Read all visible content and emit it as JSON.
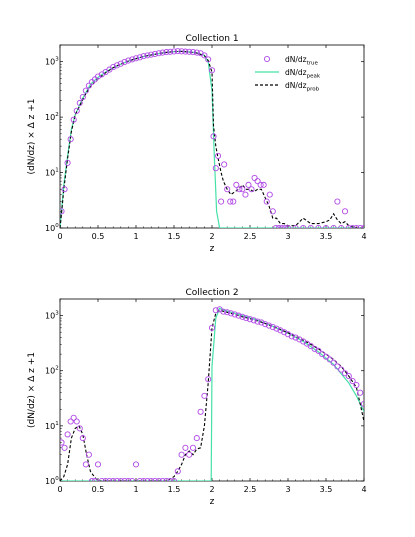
{
  "chart_data": [
    {
      "type": "scatter",
      "title": "Collection 1",
      "xlabel": "z",
      "ylabel": "(dN/dz) × Δ z +1",
      "xlim": [
        0,
        4
      ],
      "ylim": [
        1,
        2000
      ],
      "yscale": "log",
      "x_ticks": [
        "0",
        "0.5",
        "1",
        "1.5",
        "2",
        "2.5",
        "3",
        "3.5",
        "4"
      ],
      "y_ticks": [
        {
          "base": "10",
          "exp": "0"
        },
        {
          "base": "10",
          "exp": "1"
        },
        {
          "base": "10",
          "exp": "2"
        },
        {
          "base": "10",
          "exp": "3"
        }
      ],
      "legend": {
        "placement": "top-right",
        "entries": [
          {
            "base": "dN/dz",
            "sub": "true"
          },
          {
            "base": "dN/dz",
            "sub": "peak"
          },
          {
            "base": "dN/dz",
            "sub": "prob"
          }
        ]
      },
      "series": [
        {
          "style": "circles",
          "color": "#b048e6",
          "x": [
            0.02,
            0.06,
            0.1,
            0.14,
            0.18,
            0.22,
            0.26,
            0.3,
            0.34,
            0.38,
            0.42,
            0.46,
            0.5,
            0.55,
            0.6,
            0.65,
            0.7,
            0.75,
            0.8,
            0.85,
            0.9,
            0.95,
            1.0,
            1.05,
            1.1,
            1.15,
            1.2,
            1.25,
            1.3,
            1.35,
            1.4,
            1.45,
            1.5,
            1.55,
            1.6,
            1.65,
            1.7,
            1.75,
            1.8,
            1.85,
            1.9,
            1.95,
            2.0,
            2.02,
            2.05,
            2.08,
            2.12,
            2.16,
            2.2,
            2.24,
            2.28,
            2.32,
            2.36,
            2.4,
            2.44,
            2.48,
            2.52,
            2.56,
            2.6,
            2.64,
            2.68,
            2.72,
            2.76,
            2.8,
            2.84,
            2.88,
            2.92,
            2.96,
            3.0,
            3.1,
            3.2,
            3.3,
            3.4,
            3.5,
            3.6,
            3.65,
            3.7,
            3.75,
            3.8,
            3.85,
            3.9,
            3.95,
            4.0
          ],
          "y": [
            2,
            5,
            15,
            40,
            90,
            130,
            180,
            230,
            300,
            370,
            430,
            480,
            540,
            590,
            650,
            720,
            800,
            860,
            920,
            990,
            1050,
            1100,
            1150,
            1200,
            1260,
            1300,
            1340,
            1380,
            1420,
            1460,
            1490,
            1510,
            1530,
            1550,
            1540,
            1520,
            1510,
            1490,
            1460,
            1420,
            1300,
            1100,
            700,
            45,
            12,
            20,
            3,
            14,
            5,
            3,
            3,
            6,
            5,
            5,
            4,
            6,
            5,
            8,
            7,
            6,
            6,
            3,
            4,
            2,
            1,
            1,
            1,
            1,
            1,
            1,
            1,
            1,
            1,
            1,
            1,
            3,
            1,
            2,
            1,
            1,
            1,
            1,
            1
          ]
        },
        {
          "style": "solid-line",
          "color": "#46e0a8",
          "x": [
            0.0,
            0.02,
            0.05,
            0.1,
            0.15,
            0.2,
            0.3,
            0.4,
            0.5,
            0.6,
            0.7,
            0.8,
            0.9,
            1.0,
            1.1,
            1.2,
            1.3,
            1.4,
            1.5,
            1.6,
            1.7,
            1.8,
            1.9,
            1.95,
            2.0,
            2.03,
            2.06,
            2.1,
            2.5,
            3.0,
            3.5,
            4.0
          ],
          "y": [
            1,
            2,
            6,
            20,
            60,
            110,
            220,
            390,
            520,
            650,
            780,
            900,
            1020,
            1130,
            1240,
            1320,
            1400,
            1470,
            1520,
            1540,
            1500,
            1440,
            1300,
            1000,
            300,
            20,
            2,
            1,
            1,
            1,
            1,
            1
          ]
        },
        {
          "style": "dashed-line",
          "color": "#000000",
          "x": [
            0.0,
            0.02,
            0.05,
            0.1,
            0.15,
            0.2,
            0.25,
            0.3,
            0.35,
            0.4,
            0.45,
            0.5,
            0.6,
            0.7,
            0.8,
            0.9,
            1.0,
            1.1,
            1.2,
            1.3,
            1.4,
            1.5,
            1.6,
            1.7,
            1.8,
            1.9,
            1.95,
            2.0,
            2.02,
            2.05,
            2.08,
            2.12,
            2.15,
            2.2,
            2.25,
            2.3,
            2.35,
            2.4,
            2.45,
            2.5,
            2.55,
            2.6,
            2.65,
            2.7,
            2.75,
            2.8,
            2.85,
            2.9,
            2.95,
            3.0,
            3.1,
            3.2,
            3.3,
            3.4,
            3.5,
            3.55,
            3.6,
            3.65,
            3.7,
            3.75,
            3.8,
            3.9,
            4.0
          ],
          "y": [
            1,
            1.8,
            5,
            18,
            55,
            110,
            150,
            210,
            280,
            350,
            420,
            490,
            630,
            780,
            900,
            1030,
            1130,
            1240,
            1320,
            1400,
            1470,
            1520,
            1530,
            1490,
            1430,
            1280,
            1050,
            650,
            70,
            30,
            18,
            10,
            7,
            5,
            4,
            4.5,
            5,
            6,
            5,
            5,
            4.5,
            5,
            5,
            3.5,
            2.5,
            1.5,
            1.5,
            1.2,
            1.2,
            1.1,
            1.1,
            1.5,
            1.2,
            1.2,
            1.3,
            1.4,
            1.8,
            1.4,
            1.2,
            1.3,
            1.1,
            1.0,
            1.0
          ]
        }
      ]
    },
    {
      "type": "scatter",
      "title": "Collection 2",
      "xlabel": "z",
      "ylabel": "(dN/dz) × Δ z +1",
      "xlim": [
        0,
        4
      ],
      "ylim": [
        1,
        2000
      ],
      "yscale": "log",
      "x_ticks": [
        "0",
        "0.5",
        "1",
        "1.5",
        "2",
        "2.5",
        "3",
        "3.5",
        "4"
      ],
      "y_ticks": [
        {
          "base": "10",
          "exp": "0"
        },
        {
          "base": "10",
          "exp": "1"
        },
        {
          "base": "10",
          "exp": "2"
        },
        {
          "base": "10",
          "exp": "3"
        }
      ],
      "series": [
        {
          "style": "circles",
          "color": "#b048e6",
          "x": [
            0.02,
            0.06,
            0.1,
            0.14,
            0.18,
            0.22,
            0.26,
            0.3,
            0.34,
            0.38,
            0.42,
            0.46,
            0.5,
            0.55,
            0.6,
            0.65,
            0.7,
            0.75,
            0.8,
            0.85,
            0.9,
            0.95,
            1.0,
            1.05,
            1.1,
            1.15,
            1.2,
            1.25,
            1.3,
            1.35,
            1.4,
            1.45,
            1.5,
            1.55,
            1.6,
            1.65,
            1.7,
            1.75,
            1.8,
            1.85,
            1.9,
            1.95,
            2.0,
            2.05,
            2.1,
            2.15,
            2.2,
            2.25,
            2.3,
            2.35,
            2.4,
            2.45,
            2.5,
            2.55,
            2.6,
            2.65,
            2.7,
            2.75,
            2.8,
            2.85,
            2.9,
            2.95,
            3.0,
            3.05,
            3.1,
            3.15,
            3.2,
            3.25,
            3.3,
            3.35,
            3.4,
            3.45,
            3.5,
            3.55,
            3.6,
            3.65,
            3.7,
            3.75,
            3.8,
            3.85,
            3.9,
            3.95,
            4.0
          ],
          "y": [
            5,
            4,
            7,
            12,
            14,
            12,
            9,
            6,
            2,
            3,
            1,
            1,
            2,
            1,
            1,
            1,
            1,
            1,
            1,
            1,
            1,
            1,
            2,
            1,
            1,
            1,
            1,
            1,
            1,
            1,
            1,
            1,
            1,
            1.5,
            3,
            4,
            3,
            4,
            6,
            18,
            35,
            70,
            600,
            1250,
            1300,
            1180,
            1150,
            1100,
            1050,
            1000,
            950,
            900,
            860,
            820,
            780,
            750,
            700,
            660,
            620,
            580,
            540,
            500,
            460,
            420,
            400,
            370,
            340,
            310,
            280,
            250,
            230,
            200,
            180,
            160,
            140,
            120,
            105,
            90,
            80,
            65,
            55,
            40,
            25
          ]
        },
        {
          "style": "solid-line",
          "color": "#46e0a8",
          "x": [
            0.0,
            1.9,
            1.95,
            1.99,
            2.0,
            2.05,
            2.1,
            2.2,
            2.4,
            2.6,
            2.8,
            3.0,
            3.2,
            3.4,
            3.6,
            3.8,
            3.9,
            4.0
          ],
          "y": [
            1,
            1,
            1,
            1,
            120,
            900,
            1350,
            1200,
            1000,
            820,
            640,
            480,
            340,
            220,
            130,
            60,
            35,
            18
          ]
        },
        {
          "style": "dashed-line",
          "color": "#000000",
          "x": [
            0.0,
            0.05,
            0.1,
            0.15,
            0.2,
            0.25,
            0.3,
            0.35,
            0.4,
            0.45,
            0.5,
            0.6,
            0.7,
            0.8,
            0.9,
            1.0,
            1.1,
            1.2,
            1.3,
            1.4,
            1.5,
            1.55,
            1.6,
            1.65,
            1.7,
            1.75,
            1.8,
            1.85,
            1.9,
            1.95,
            2.0,
            2.05,
            2.1,
            2.2,
            2.3,
            2.4,
            2.5,
            2.6,
            2.7,
            2.8,
            2.9,
            3.0,
            3.1,
            3.2,
            3.3,
            3.4,
            3.5,
            3.6,
            3.7,
            3.8,
            3.9,
            3.95,
            4.0
          ],
          "y": [
            1,
            1.2,
            2,
            6,
            9,
            10,
            7,
            3,
            1.5,
            1.2,
            1,
            1,
            1,
            1,
            1,
            1,
            1,
            1,
            1,
            1,
            1.2,
            1.5,
            2,
            3,
            3.5,
            3,
            3.8,
            4,
            10,
            60,
            600,
            1100,
            1250,
            1150,
            1050,
            950,
            880,
            800,
            720,
            640,
            560,
            490,
            420,
            360,
            300,
            250,
            200,
            160,
            120,
            80,
            50,
            25,
            12
          ]
        }
      ]
    }
  ]
}
